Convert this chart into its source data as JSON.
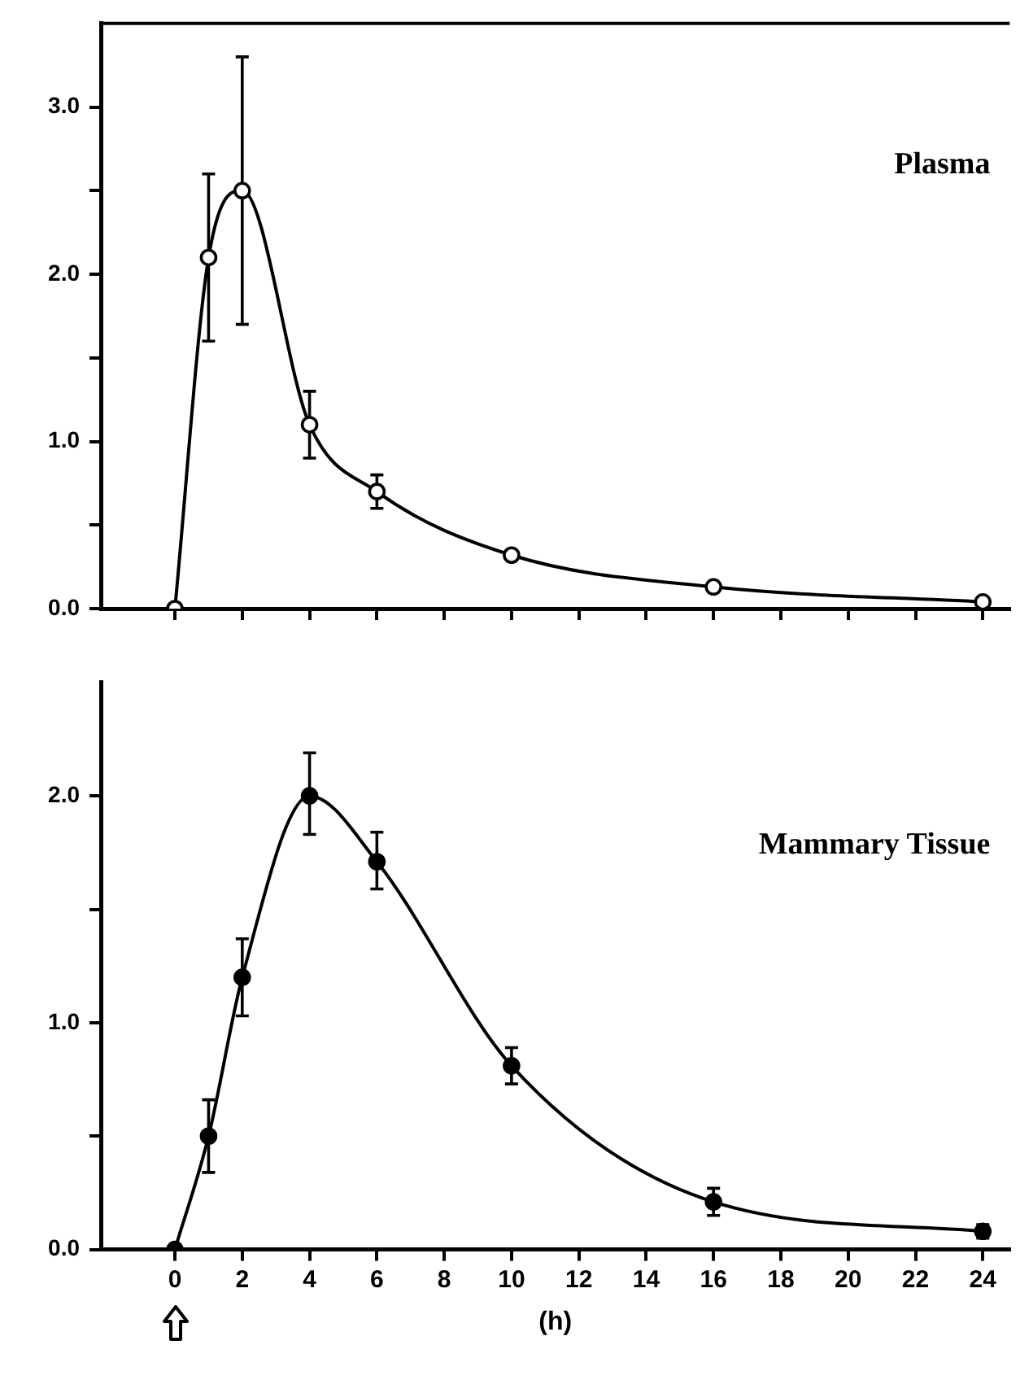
{
  "chart_data": [
    {
      "type": "line",
      "x": [
        0,
        1,
        2,
        4,
        6,
        10,
        16,
        24
      ],
      "series": [
        {
          "name": "Plasma",
          "color": "#000000",
          "values": [
            0,
            2.1,
            2.5,
            1.1,
            0.7,
            0.32,
            0.13,
            0.04
          ],
          "errors": [
            null,
            [
              1.6,
              2.6
            ],
            [
              1.7,
              3.3
            ],
            [
              0.9,
              1.3
            ],
            [
              0.6,
              0.8
            ],
            null,
            null,
            null
          ]
        }
      ],
      "xlim": [
        -2.2,
        24.8
      ],
      "ylim": [
        0,
        3.5
      ],
      "xticks": [
        {
          "value": 0,
          "label": null
        },
        {
          "value": 2,
          "label": null
        },
        {
          "value": 4,
          "label": null
        },
        {
          "value": 6,
          "label": null
        },
        {
          "value": 8,
          "label": null
        },
        {
          "value": 10,
          "label": null
        },
        {
          "value": 12,
          "label": null
        },
        {
          "value": 14,
          "label": null
        },
        {
          "value": 16,
          "label": null
        },
        {
          "value": 18,
          "label": null
        },
        {
          "value": 20,
          "label": null
        },
        {
          "value": 22,
          "label": null
        },
        {
          "value": 24,
          "label": null
        }
      ],
      "yticks": [
        {
          "value": 0,
          "label": "0.0"
        },
        {
          "value": 0.5,
          "label": null
        },
        {
          "value": 1,
          "label": "1.0"
        },
        {
          "value": 1.5,
          "label": null
        },
        {
          "value": 2,
          "label": "2.0"
        },
        {
          "value": 2.5,
          "label": null
        },
        {
          "value": 3,
          "label": "3.0"
        }
      ],
      "tick_labels": "y",
      "grid": false,
      "legend": false,
      "marker": "circle",
      "line_style": "solid"
    },
    {
      "type": "line",
      "x": [
        0,
        1,
        2,
        4,
        6,
        10,
        16,
        24
      ],
      "xlabel": "(h)",
      "series": [
        {
          "name": "Mammary Tissue",
          "color": "#000000",
          "values": [
            0,
            0.5,
            1.2,
            2.0,
            1.71,
            0.81,
            0.21,
            0.08
          ],
          "errors": [
            null,
            [
              0.34,
              0.66
            ],
            [
              1.03,
              1.37
            ],
            [
              1.83,
              2.19
            ],
            [
              1.59,
              1.84
            ],
            [
              0.73,
              0.89
            ],
            [
              0.15,
              0.27
            ],
            [
              0.05,
              0.11
            ]
          ]
        }
      ],
      "xlim": [
        -2.2,
        24.8
      ],
      "ylim": [
        0,
        2.5
      ],
      "xticks": [
        0,
        2,
        4,
        6,
        8,
        10,
        12,
        14,
        16,
        18,
        20,
        22,
        24
      ],
      "yticks": [
        {
          "value": 0,
          "label": "0.0"
        },
        {
          "value": 0.5,
          "label": null
        },
        {
          "value": 1,
          "label": "1.0"
        },
        {
          "value": 1.5,
          "label": null
        },
        {
          "value": 2,
          "label": "2.0"
        }
      ],
      "grid": false,
      "legend": false,
      "marker": "circle",
      "line_style": "solid"
    }
  ]
}
